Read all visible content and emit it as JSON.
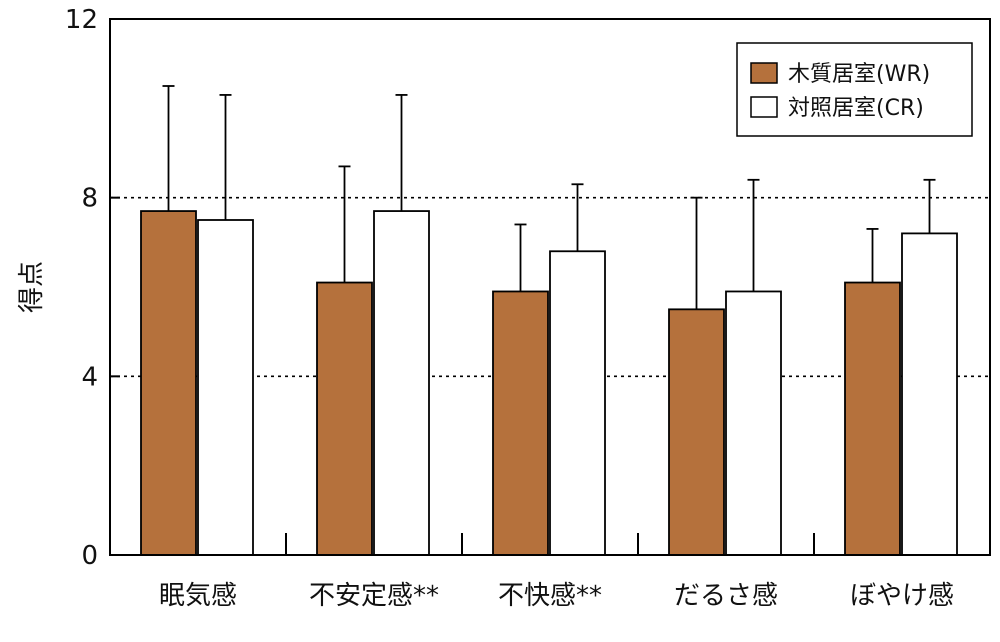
{
  "chart_data": {
    "type": "bar",
    "ylabel": "得点",
    "ylim": [
      0,
      12
    ],
    "yticks": [
      0,
      4,
      8,
      12
    ],
    "gridlines": [
      4,
      8
    ],
    "categories": [
      "眠気感",
      "不安定感**",
      "不快感**",
      "だるさ感",
      "ぼやけ感"
    ],
    "series": [
      {
        "name": "木質居室(WR)",
        "color": "#B5713C",
        "values": [
          7.7,
          6.1,
          5.9,
          5.5,
          6.1
        ],
        "errors": [
          2.8,
          2.6,
          1.5,
          2.5,
          1.2
        ]
      },
      {
        "name": "対照居室(CR)",
        "color": "#FFFFFF",
        "values": [
          7.5,
          7.7,
          6.8,
          5.9,
          7.2
        ],
        "errors": [
          2.8,
          2.6,
          1.5,
          2.5,
          1.2
        ]
      }
    ],
    "legend": "top-right"
  }
}
